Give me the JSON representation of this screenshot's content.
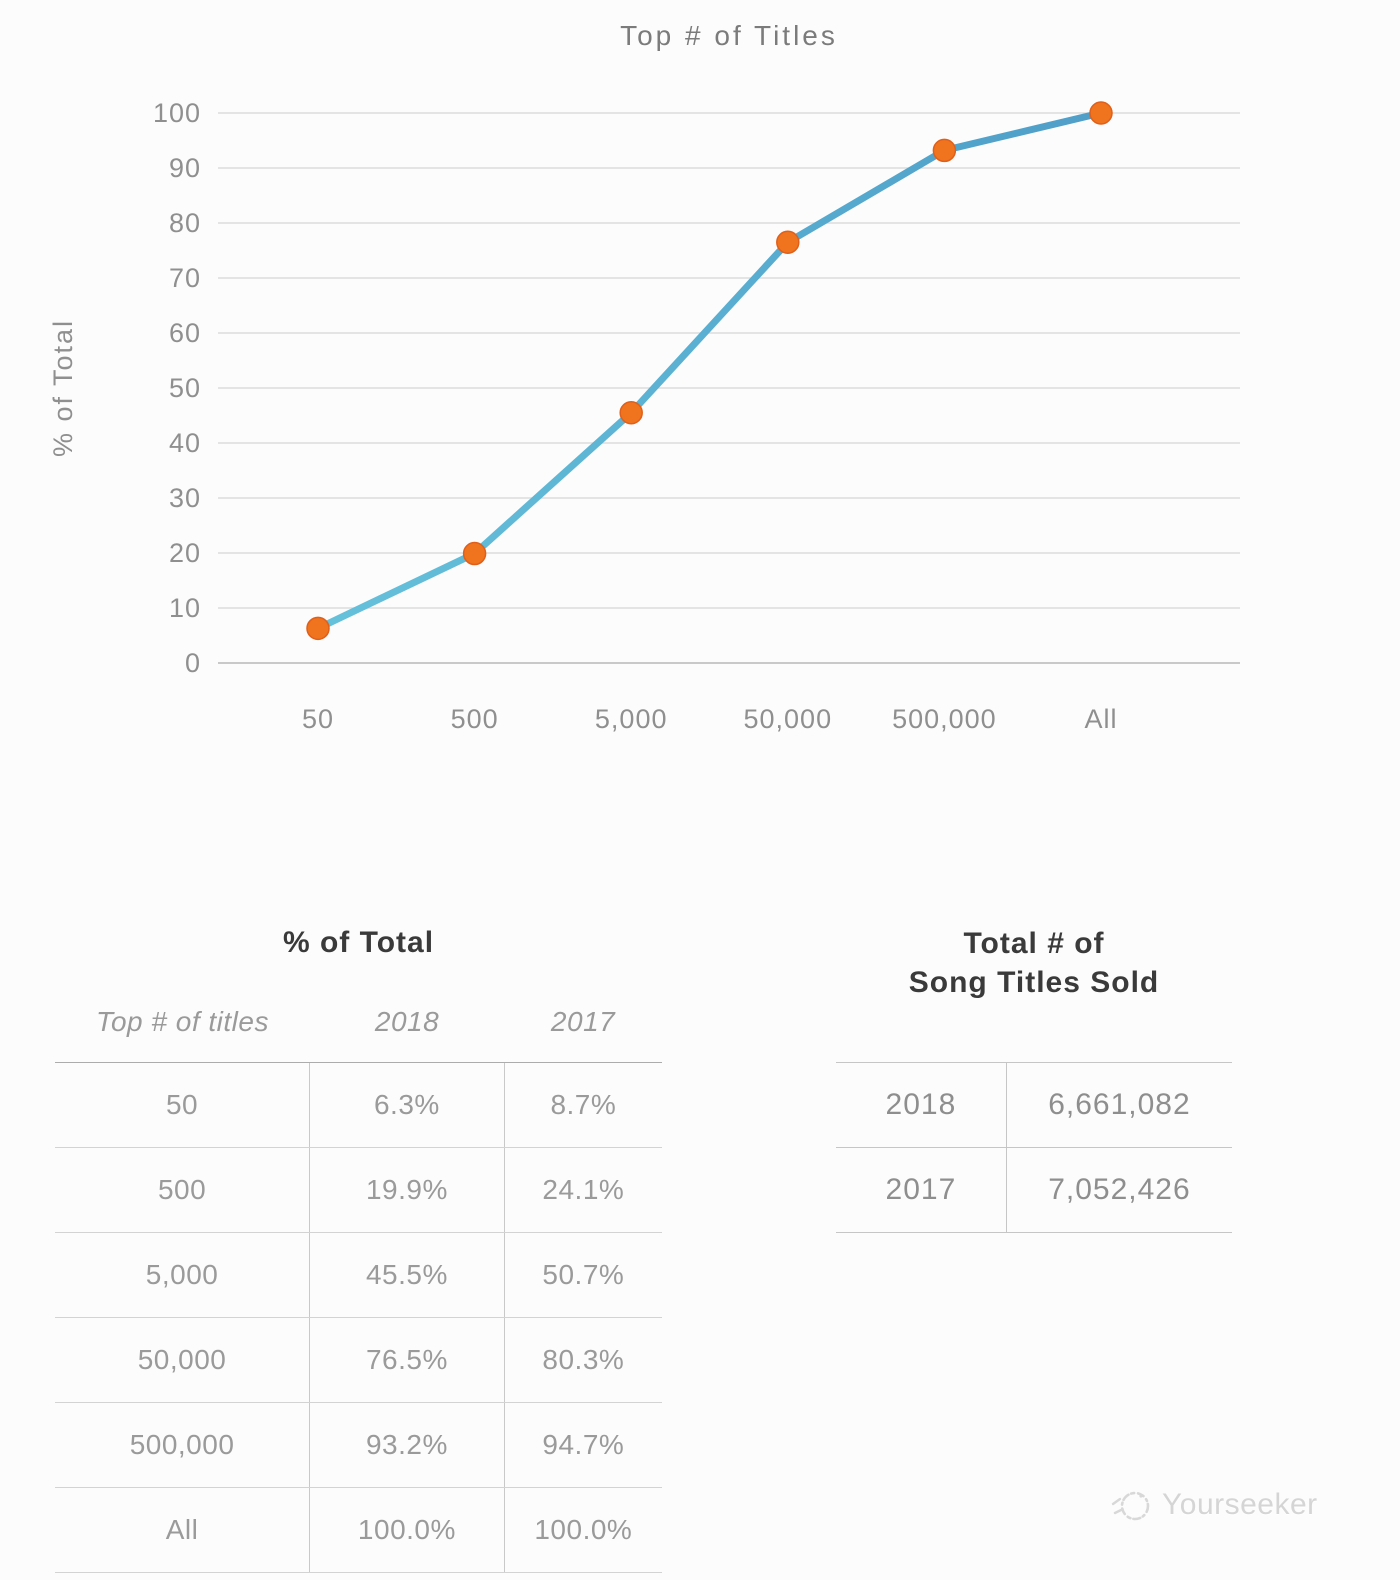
{
  "page": {
    "background": "#FCFCFC"
  },
  "chart": {
    "title": "Top # of Titles",
    "y_axis_title": "% of Total",
    "colors": {
      "grid": "#DBDBDB",
      "axis": "#C9C9C9",
      "tick_label": "#8F8F8F",
      "title": "#7B7B7B",
      "line_start": "#68C5DD",
      "line_end": "#4C9AC6",
      "marker_fill": "#F0741E",
      "marker_border": "#E05F1A"
    }
  },
  "chart_data": {
    "type": "line",
    "title": "Top # of Titles",
    "xlabel": "",
    "ylabel": "% of Total",
    "categories": [
      "50",
      "500",
      "5,000",
      "50,000",
      "500,000",
      "All"
    ],
    "series": [
      {
        "name": "2018",
        "values": [
          6.3,
          19.9,
          45.5,
          76.5,
          93.2,
          100.0
        ]
      }
    ],
    "ylim": [
      0,
      100
    ],
    "y_ticks": [
      0,
      10,
      20,
      30,
      40,
      50,
      60,
      70,
      80,
      90,
      100
    ],
    "grid": true,
    "legend": false
  },
  "left_table": {
    "title": "% of Total",
    "columns": [
      "Top # of titles",
      "2018",
      "2017"
    ],
    "rows": [
      [
        "50",
        "6.3%",
        "8.7%"
      ],
      [
        "500",
        "19.9%",
        "24.1%"
      ],
      [
        "5,000",
        "45.5%",
        "50.7%"
      ],
      [
        "50,000",
        "76.5%",
        "80.3%"
      ],
      [
        "500,000",
        "93.2%",
        "94.7%"
      ],
      [
        "All",
        "100.0%",
        "100.0%"
      ]
    ]
  },
  "right_table": {
    "title_line1": "Total # of",
    "title_line2": "Song Titles Sold",
    "rows": [
      [
        "2018",
        "6,661,082"
      ],
      [
        "2017",
        "7,052,426"
      ]
    ]
  },
  "watermark": {
    "label": "Yourseeker"
  }
}
